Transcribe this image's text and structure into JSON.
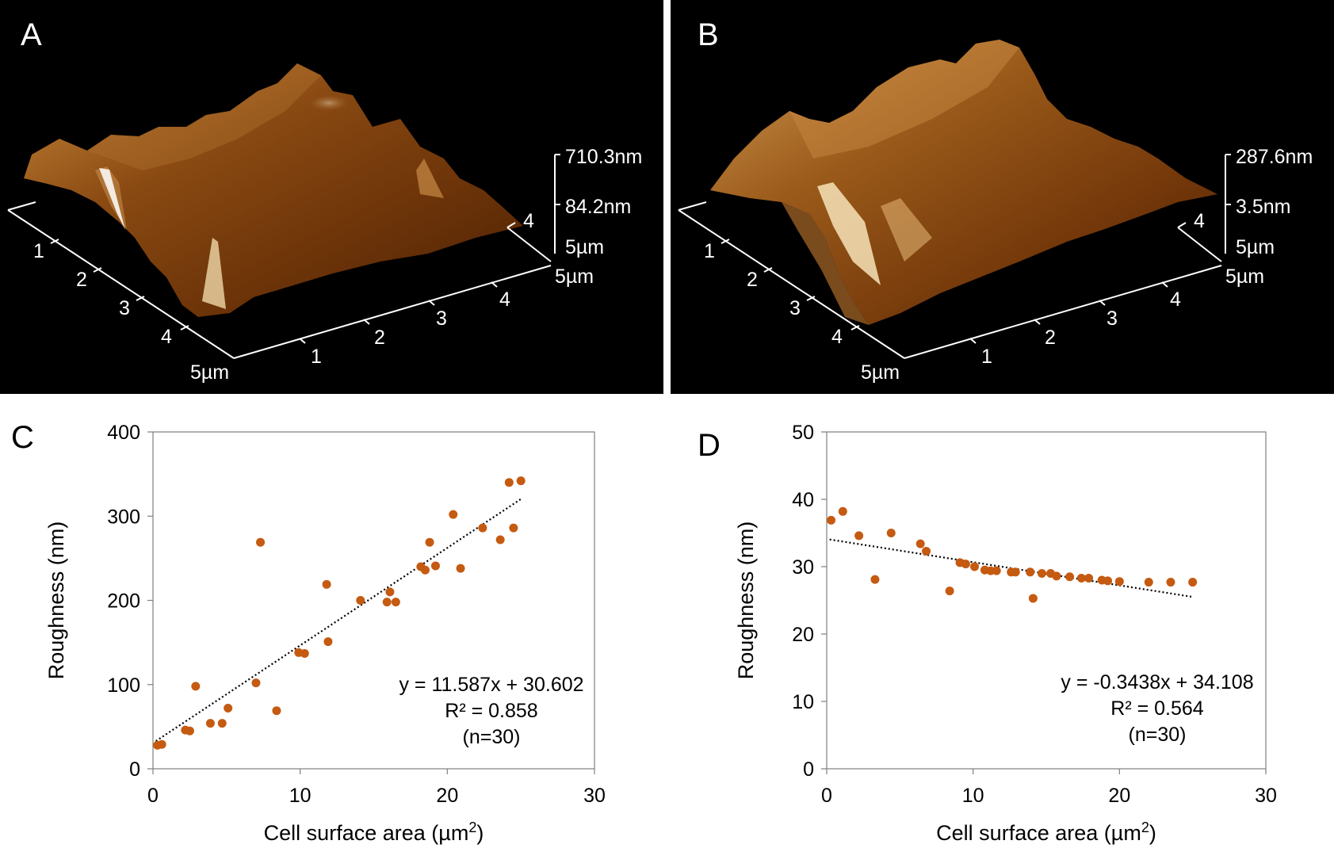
{
  "panels": {
    "a": {
      "label": "A",
      "z_top": "710.3nm",
      "z_mid": "84.2nm",
      "z_base": "5µm",
      "depth_tick": "4",
      "x_end": "5µm",
      "x_ticks": [
        "1",
        "2",
        "3",
        "4"
      ],
      "y_ticks": [
        "1",
        "2",
        "3",
        "4"
      ],
      "y_end": "5µm"
    },
    "b": {
      "label": "B",
      "z_top": "287.6nm",
      "z_mid": "3.5nm",
      "z_base": "5µm",
      "depth_tick": "4",
      "x_end": "5µm",
      "x_ticks": [
        "1",
        "2",
        "3",
        "4"
      ],
      "y_ticks": [
        "1",
        "2",
        "3",
        "4"
      ],
      "y_end": "5µm"
    },
    "c": {
      "label": "C"
    },
    "d": {
      "label": "D"
    }
  },
  "chart_data": [
    {
      "type": "scatter",
      "panel": "C",
      "xlabel": "Cell surface area (µm",
      "xlabel_sup": "2",
      "xlabel_end": ")",
      "ylabel": "Roughness (nm)",
      "xlim": [
        0,
        30
      ],
      "ylim": [
        0,
        400
      ],
      "xticks": [
        0,
        10,
        20,
        30
      ],
      "yticks": [
        0,
        100,
        200,
        300,
        400
      ],
      "trendline": {
        "slope": 11.587,
        "intercept": 30.602,
        "x_range": [
          0.2,
          25
        ]
      },
      "equation": "y = 11.587x + 30.602",
      "r2": "R² = 0.858",
      "n": "(n=30)",
      "points": [
        [
          0.3,
          28
        ],
        [
          0.6,
          29
        ],
        [
          2.2,
          46
        ],
        [
          2.5,
          45
        ],
        [
          2.9,
          98
        ],
        [
          3.9,
          54
        ],
        [
          4.7,
          54
        ],
        [
          5.1,
          72
        ],
        [
          7.0,
          102
        ],
        [
          7.3,
          269
        ],
        [
          8.4,
          69
        ],
        [
          9.9,
          138
        ],
        [
          10.3,
          137
        ],
        [
          11.8,
          219
        ],
        [
          11.9,
          151
        ],
        [
          14.1,
          200
        ],
        [
          15.9,
          198
        ],
        [
          16.1,
          210
        ],
        [
          16.5,
          198
        ],
        [
          18.2,
          240
        ],
        [
          18.5,
          236
        ],
        [
          18.8,
          269
        ],
        [
          19.2,
          241
        ],
        [
          20.4,
          302
        ],
        [
          20.9,
          238
        ],
        [
          22.4,
          286
        ],
        [
          23.6,
          272
        ],
        [
          24.2,
          340
        ],
        [
          24.5,
          286
        ],
        [
          25.0,
          342
        ]
      ]
    },
    {
      "type": "scatter",
      "panel": "D",
      "xlabel": "Cell surface area (µm",
      "xlabel_sup": "2",
      "xlabel_end": ")",
      "ylabel": "Roughness (nm)",
      "xlim": [
        0,
        30
      ],
      "ylim": [
        0,
        50
      ],
      "xticks": [
        0,
        10,
        20,
        30
      ],
      "yticks": [
        0,
        10,
        20,
        30,
        40,
        50
      ],
      "trendline": {
        "slope": -0.3438,
        "intercept": 34.108,
        "x_range": [
          0.2,
          25
        ]
      },
      "equation": "y = -0.3438x + 34.108",
      "r2": "R² = 0.564",
      "n": "(n=30)",
      "points": [
        [
          0.3,
          36.9
        ],
        [
          1.1,
          38.2
        ],
        [
          2.2,
          34.6
        ],
        [
          3.3,
          28.1
        ],
        [
          4.4,
          35.0
        ],
        [
          6.4,
          33.4
        ],
        [
          6.8,
          32.3
        ],
        [
          8.4,
          26.4
        ],
        [
          9.1,
          30.6
        ],
        [
          9.5,
          30.4
        ],
        [
          10.1,
          30.0
        ],
        [
          10.8,
          29.5
        ],
        [
          11.2,
          29.4
        ],
        [
          11.6,
          29.4
        ],
        [
          12.6,
          29.2
        ],
        [
          12.9,
          29.2
        ],
        [
          13.9,
          29.2
        ],
        [
          14.1,
          25.3
        ],
        [
          14.7,
          29.0
        ],
        [
          15.3,
          29.0
        ],
        [
          15.7,
          28.6
        ],
        [
          16.6,
          28.5
        ],
        [
          17.4,
          28.3
        ],
        [
          17.9,
          28.3
        ],
        [
          18.8,
          28.0
        ],
        [
          19.2,
          27.9
        ],
        [
          20.0,
          27.8
        ],
        [
          22.0,
          27.7
        ],
        [
          23.5,
          27.7
        ],
        [
          25.0,
          27.7
        ]
      ]
    }
  ]
}
